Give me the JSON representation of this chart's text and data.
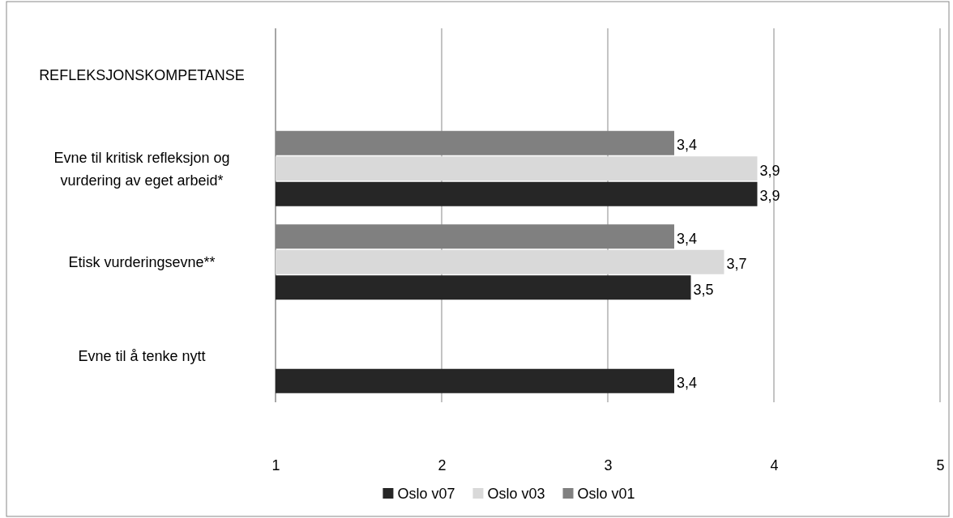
{
  "chart_data": {
    "type": "bar",
    "orientation": "horizontal",
    "categories": [
      "REFLEKSJONSKOMPETANSE",
      "Evne til kritisk refleksjon og vurdering av eget arbeid*",
      "Etisk vurderingsevne**",
      "Evne til å tenke nytt"
    ],
    "series": [
      {
        "name": "Oslo v07",
        "color": "#262626",
        "values": [
          null,
          3.9,
          3.5,
          3.4
        ],
        "value_labels": [
          null,
          "3,9",
          "3,5",
          "3,4"
        ]
      },
      {
        "name": "Oslo v03",
        "color": "#d9d9d9",
        "values": [
          null,
          3.9,
          3.7,
          null
        ],
        "value_labels": [
          null,
          "3,9",
          "3,7",
          null
        ]
      },
      {
        "name": "Oslo v01",
        "color": "#808080",
        "values": [
          null,
          3.4,
          3.4,
          null
        ],
        "value_labels": [
          null,
          "3,4",
          "3,4",
          null
        ]
      }
    ],
    "xlim": [
      1,
      5
    ],
    "xticks": [
      1,
      2,
      3,
      4,
      5
    ],
    "grid": "x",
    "legend": "bottom"
  }
}
